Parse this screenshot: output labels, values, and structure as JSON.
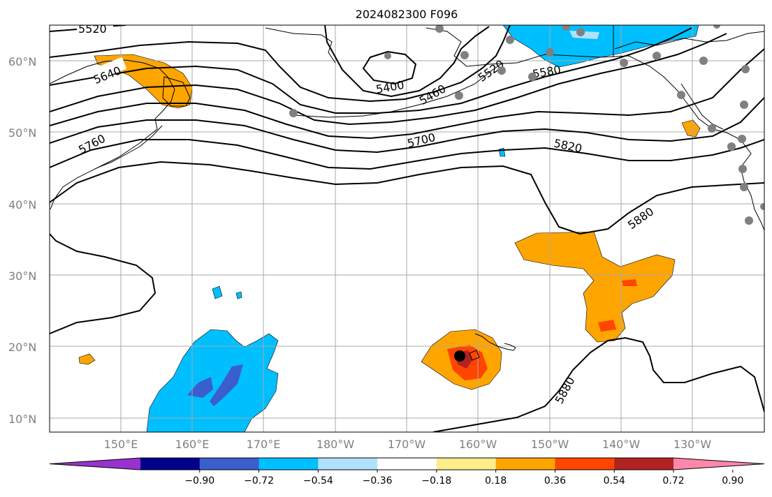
{
  "title": "2024082300 F096",
  "lat_labels": [
    "60°N",
    "50°N",
    "40°N",
    "30°N",
    "20°N",
    "10°N"
  ],
  "lon_labels": [
    "150°E",
    "160°E",
    "170°E",
    "180°W",
    "170°W",
    "160°W",
    "150°W",
    "140°W",
    "130°W"
  ],
  "contour_labels": [
    "5520",
    "5640",
    "5400",
    "5460",
    "5520",
    "5580",
    "5760",
    "5700",
    "5820",
    "5880",
    "5880"
  ],
  "colorbar": {
    "ticks": [
      "−0.90",
      "−0.72",
      "−0.54",
      "−0.36",
      "−0.18",
      "0.18",
      "0.36",
      "0.54",
      "0.72",
      "0.90"
    ],
    "colors": [
      "#9932cc",
      "#00008b",
      "#3a5fcd",
      "#00bfff",
      "#b0e2ff",
      "#ffffff",
      "#ffec8b",
      "#ffa500",
      "#ff4500",
      "#b22222",
      "#ff88aa"
    ]
  },
  "colors": {
    "grid": "#a9a9a9",
    "tick_text": "#808080",
    "station": "#808080",
    "storm_marker": "#000000"
  }
}
